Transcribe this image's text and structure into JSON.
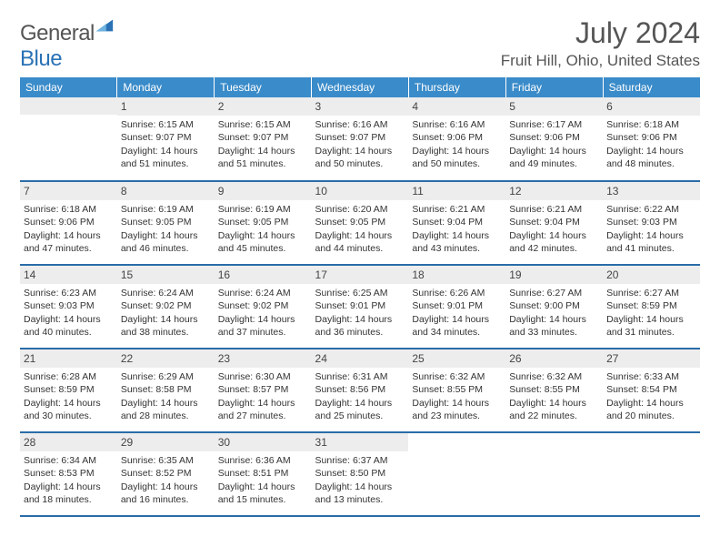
{
  "brand": {
    "word1": "General",
    "word2": "Blue"
  },
  "title": "July 2024",
  "location": "Fruit Hill, Ohio, United States",
  "colors": {
    "header_bg": "#3a8bc9",
    "header_text": "#ffffff",
    "rule": "#2a6ca8",
    "daynum_bg": "#ededed",
    "text": "#333333",
    "brand_gray": "#555555",
    "brand_blue": "#2a72b5"
  },
  "weekdays": [
    "Sunday",
    "Monday",
    "Tuesday",
    "Wednesday",
    "Thursday",
    "Friday",
    "Saturday"
  ],
  "start_offset": 1,
  "days": [
    {
      "n": 1,
      "sunrise": "6:15 AM",
      "sunset": "9:07 PM",
      "daylight": "14 hours and 51 minutes."
    },
    {
      "n": 2,
      "sunrise": "6:15 AM",
      "sunset": "9:07 PM",
      "daylight": "14 hours and 51 minutes."
    },
    {
      "n": 3,
      "sunrise": "6:16 AM",
      "sunset": "9:07 PM",
      "daylight": "14 hours and 50 minutes."
    },
    {
      "n": 4,
      "sunrise": "6:16 AM",
      "sunset": "9:06 PM",
      "daylight": "14 hours and 50 minutes."
    },
    {
      "n": 5,
      "sunrise": "6:17 AM",
      "sunset": "9:06 PM",
      "daylight": "14 hours and 49 minutes."
    },
    {
      "n": 6,
      "sunrise": "6:18 AM",
      "sunset": "9:06 PM",
      "daylight": "14 hours and 48 minutes."
    },
    {
      "n": 7,
      "sunrise": "6:18 AM",
      "sunset": "9:06 PM",
      "daylight": "14 hours and 47 minutes."
    },
    {
      "n": 8,
      "sunrise": "6:19 AM",
      "sunset": "9:05 PM",
      "daylight": "14 hours and 46 minutes."
    },
    {
      "n": 9,
      "sunrise": "6:19 AM",
      "sunset": "9:05 PM",
      "daylight": "14 hours and 45 minutes."
    },
    {
      "n": 10,
      "sunrise": "6:20 AM",
      "sunset": "9:05 PM",
      "daylight": "14 hours and 44 minutes."
    },
    {
      "n": 11,
      "sunrise": "6:21 AM",
      "sunset": "9:04 PM",
      "daylight": "14 hours and 43 minutes."
    },
    {
      "n": 12,
      "sunrise": "6:21 AM",
      "sunset": "9:04 PM",
      "daylight": "14 hours and 42 minutes."
    },
    {
      "n": 13,
      "sunrise": "6:22 AM",
      "sunset": "9:03 PM",
      "daylight": "14 hours and 41 minutes."
    },
    {
      "n": 14,
      "sunrise": "6:23 AM",
      "sunset": "9:03 PM",
      "daylight": "14 hours and 40 minutes."
    },
    {
      "n": 15,
      "sunrise": "6:24 AM",
      "sunset": "9:02 PM",
      "daylight": "14 hours and 38 minutes."
    },
    {
      "n": 16,
      "sunrise": "6:24 AM",
      "sunset": "9:02 PM",
      "daylight": "14 hours and 37 minutes."
    },
    {
      "n": 17,
      "sunrise": "6:25 AM",
      "sunset": "9:01 PM",
      "daylight": "14 hours and 36 minutes."
    },
    {
      "n": 18,
      "sunrise": "6:26 AM",
      "sunset": "9:01 PM",
      "daylight": "14 hours and 34 minutes."
    },
    {
      "n": 19,
      "sunrise": "6:27 AM",
      "sunset": "9:00 PM",
      "daylight": "14 hours and 33 minutes."
    },
    {
      "n": 20,
      "sunrise": "6:27 AM",
      "sunset": "8:59 PM",
      "daylight": "14 hours and 31 minutes."
    },
    {
      "n": 21,
      "sunrise": "6:28 AM",
      "sunset": "8:59 PM",
      "daylight": "14 hours and 30 minutes."
    },
    {
      "n": 22,
      "sunrise": "6:29 AM",
      "sunset": "8:58 PM",
      "daylight": "14 hours and 28 minutes."
    },
    {
      "n": 23,
      "sunrise": "6:30 AM",
      "sunset": "8:57 PM",
      "daylight": "14 hours and 27 minutes."
    },
    {
      "n": 24,
      "sunrise": "6:31 AM",
      "sunset": "8:56 PM",
      "daylight": "14 hours and 25 minutes."
    },
    {
      "n": 25,
      "sunrise": "6:32 AM",
      "sunset": "8:55 PM",
      "daylight": "14 hours and 23 minutes."
    },
    {
      "n": 26,
      "sunrise": "6:32 AM",
      "sunset": "8:55 PM",
      "daylight": "14 hours and 22 minutes."
    },
    {
      "n": 27,
      "sunrise": "6:33 AM",
      "sunset": "8:54 PM",
      "daylight": "14 hours and 20 minutes."
    },
    {
      "n": 28,
      "sunrise": "6:34 AM",
      "sunset": "8:53 PM",
      "daylight": "14 hours and 18 minutes."
    },
    {
      "n": 29,
      "sunrise": "6:35 AM",
      "sunset": "8:52 PM",
      "daylight": "14 hours and 16 minutes."
    },
    {
      "n": 30,
      "sunrise": "6:36 AM",
      "sunset": "8:51 PM",
      "daylight": "14 hours and 15 minutes."
    },
    {
      "n": 31,
      "sunrise": "6:37 AM",
      "sunset": "8:50 PM",
      "daylight": "14 hours and 13 minutes."
    }
  ],
  "labels": {
    "sunrise": "Sunrise:",
    "sunset": "Sunset:",
    "daylight": "Daylight:"
  }
}
